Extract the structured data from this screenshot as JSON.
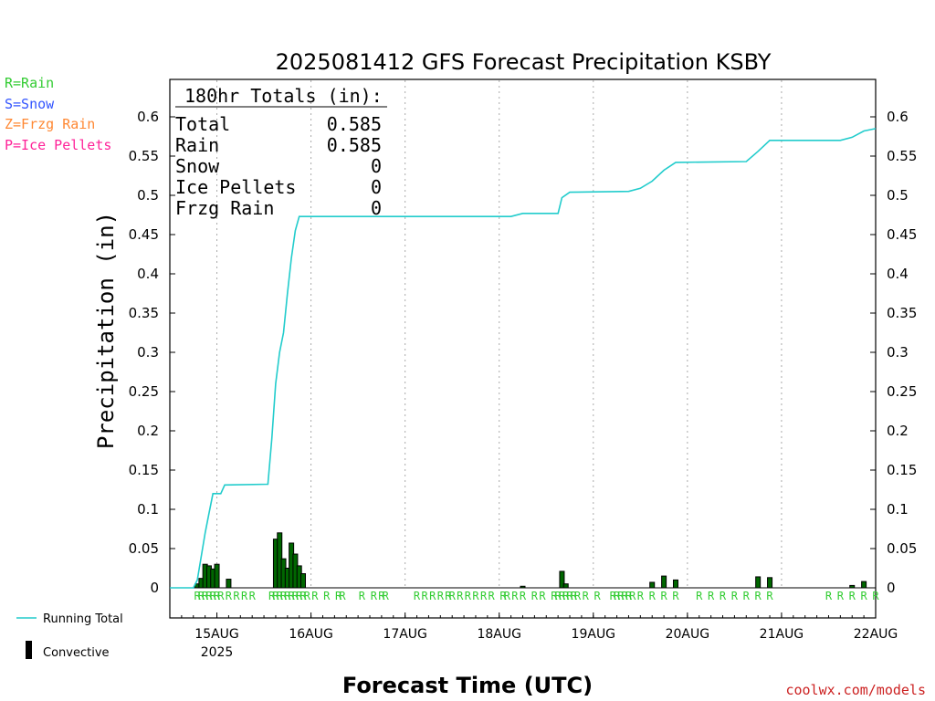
{
  "colors": {
    "rain": "#33cc33",
    "snow": "#3355ff",
    "frzg_rain": "#ff8833",
    "ice_pellets": "#ff2299",
    "running_total": "#22cccc",
    "convective": "#000000",
    "bar_fill": "#006600",
    "watermark": "#cc2222"
  },
  "legend_top": {
    "rain": "R=Rain",
    "snow": "S=Snow",
    "frzg_rain": "Z=Frzg Rain",
    "ice_pellets": "P=Ice Pellets"
  },
  "legend_bottom": {
    "running_total": "Running Total",
    "convective": "Convective"
  },
  "totals_box": {
    "header": "180hr Totals (in):",
    "rows": [
      {
        "label": "Total",
        "value": "0.585"
      },
      {
        "label": "Rain",
        "value": "0.585"
      },
      {
        "label": "Snow",
        "value": "0"
      },
      {
        "label": "Ice Pellets",
        "value": "0"
      },
      {
        "label": "Frzg Rain",
        "value": "0"
      }
    ]
  },
  "watermark": "coolwx.com/models",
  "chart_data": {
    "type": "line",
    "title": "2025081412 GFS Forecast Precipitation KSBY",
    "xlabel": "Forecast Time (UTC)",
    "ylabel": "Precipitation (in)",
    "ylim": [
      0,
      0.6
    ],
    "y_ticks": [
      "0",
      "0.05",
      "0.1",
      "0.15",
      "0.2",
      "0.25",
      "0.3",
      "0.35",
      "0.4",
      "0.45",
      "0.5",
      "0.55",
      "0.6"
    ],
    "x_start": "2025-08-14T12:00Z",
    "x_end": "2025-08-22T00:00Z",
    "x_ticks": [
      {
        "label": "15AUG",
        "sub": "2025",
        "time": "2025-08-15T00:00Z"
      },
      {
        "label": "16AUG",
        "time": "2025-08-16T00:00Z"
      },
      {
        "label": "17AUG",
        "time": "2025-08-17T00:00Z"
      },
      {
        "label": "18AUG",
        "time": "2025-08-18T00:00Z"
      },
      {
        "label": "19AUG",
        "time": "2025-08-19T00:00Z"
      },
      {
        "label": "20AUG",
        "time": "2025-08-20T00:00Z"
      },
      {
        "label": "21AUG",
        "time": "2025-08-21T00:00Z"
      },
      {
        "label": "22AUG",
        "time": "2025-08-22T00:00Z"
      }
    ],
    "grid": "vertical dotted at day boundaries",
    "series": [
      {
        "name": "Running Total",
        "points": [
          [
            "2025-08-14T12:00Z",
            0.0
          ],
          [
            "2025-08-14T18:00Z",
            0.0
          ],
          [
            "2025-08-14T19:00Z",
            0.01
          ],
          [
            "2025-08-14T20:00Z",
            0.04
          ],
          [
            "2025-08-14T21:00Z",
            0.07
          ],
          [
            "2025-08-14T22:00Z",
            0.095
          ],
          [
            "2025-08-14T23:00Z",
            0.12
          ],
          [
            "2025-08-15T01:00Z",
            0.12
          ],
          [
            "2025-08-15T02:00Z",
            0.131
          ],
          [
            "2025-08-15T13:00Z",
            0.132
          ],
          [
            "2025-08-15T14:00Z",
            0.19
          ],
          [
            "2025-08-15T15:00Z",
            0.26
          ],
          [
            "2025-08-15T16:00Z",
            0.3
          ],
          [
            "2025-08-15T17:00Z",
            0.325
          ],
          [
            "2025-08-15T18:00Z",
            0.375
          ],
          [
            "2025-08-15T19:00Z",
            0.42
          ],
          [
            "2025-08-15T20:00Z",
            0.455
          ],
          [
            "2025-08-15T21:00Z",
            0.473
          ],
          [
            "2025-08-18T03:00Z",
            0.473
          ],
          [
            "2025-08-18T06:00Z",
            0.477
          ],
          [
            "2025-08-18T15:00Z",
            0.477
          ],
          [
            "2025-08-18T16:00Z",
            0.497
          ],
          [
            "2025-08-18T18:00Z",
            0.504
          ],
          [
            "2025-08-19T09:00Z",
            0.505
          ],
          [
            "2025-08-19T12:00Z",
            0.509
          ],
          [
            "2025-08-19T15:00Z",
            0.518
          ],
          [
            "2025-08-19T18:00Z",
            0.532
          ],
          [
            "2025-08-19T21:00Z",
            0.542
          ],
          [
            "2025-08-20T15:00Z",
            0.543
          ],
          [
            "2025-08-20T18:00Z",
            0.556
          ],
          [
            "2025-08-20T21:00Z",
            0.57
          ],
          [
            "2025-08-21T15:00Z",
            0.57
          ],
          [
            "2025-08-21T18:00Z",
            0.574
          ],
          [
            "2025-08-21T21:00Z",
            0.582
          ],
          [
            "2025-08-22T00:00Z",
            0.585
          ]
        ]
      },
      {
        "name": "Convective",
        "type": "bar",
        "points": [
          [
            "2025-08-14T19:00Z",
            0.005
          ],
          [
            "2025-08-14T20:00Z",
            0.012
          ],
          [
            "2025-08-14T21:00Z",
            0.03
          ],
          [
            "2025-08-14T22:00Z",
            0.028
          ],
          [
            "2025-08-14T23:00Z",
            0.024
          ],
          [
            "2025-08-15T00:00Z",
            0.03
          ],
          [
            "2025-08-15T03:00Z",
            0.011
          ],
          [
            "2025-08-15T15:00Z",
            0.062
          ],
          [
            "2025-08-15T16:00Z",
            0.07
          ],
          [
            "2025-08-15T17:00Z",
            0.037
          ],
          [
            "2025-08-15T18:00Z",
            0.025
          ],
          [
            "2025-08-15T19:00Z",
            0.057
          ],
          [
            "2025-08-15T20:00Z",
            0.043
          ],
          [
            "2025-08-15T21:00Z",
            0.028
          ],
          [
            "2025-08-15T22:00Z",
            0.018
          ],
          [
            "2025-08-18T06:00Z",
            0.002
          ],
          [
            "2025-08-18T16:00Z",
            0.021
          ],
          [
            "2025-08-18T17:00Z",
            0.005
          ],
          [
            "2025-08-19T15:00Z",
            0.007
          ],
          [
            "2025-08-19T18:00Z",
            0.015
          ],
          [
            "2025-08-19T21:00Z",
            0.01
          ],
          [
            "2025-08-20T18:00Z",
            0.014
          ],
          [
            "2025-08-20T21:00Z",
            0.013
          ],
          [
            "2025-08-21T18:00Z",
            0.003
          ],
          [
            "2025-08-21T21:00Z",
            0.008
          ]
        ]
      }
    ],
    "precip_type_marks": {
      "symbol": "R",
      "times": [
        "2025-08-14T19:00Z",
        "2025-08-14T20:00Z",
        "2025-08-14T21:00Z",
        "2025-08-14T22:00Z",
        "2025-08-14T23:00Z",
        "2025-08-15T00:00Z",
        "2025-08-15T01:00Z",
        "2025-08-15T03:00Z",
        "2025-08-15T05:00Z",
        "2025-08-15T07:00Z",
        "2025-08-15T09:00Z",
        "2025-08-15T14:00Z",
        "2025-08-15T15:00Z",
        "2025-08-15T16:00Z",
        "2025-08-15T17:00Z",
        "2025-08-15T18:00Z",
        "2025-08-15T19:00Z",
        "2025-08-15T20:00Z",
        "2025-08-15T21:00Z",
        "2025-08-15T22:00Z",
        "2025-08-15T23:00Z",
        "2025-08-16T01:00Z",
        "2025-08-16T04:00Z",
        "2025-08-16T07:00Z",
        "2025-08-16T08:00Z",
        "2025-08-16T13:00Z",
        "2025-08-16T16:00Z",
        "2025-08-16T18:00Z",
        "2025-08-16T19:00Z",
        "2025-08-17T03:00Z",
        "2025-08-17T05:00Z",
        "2025-08-17T07:00Z",
        "2025-08-17T09:00Z",
        "2025-08-17T11:00Z",
        "2025-08-17T12:00Z",
        "2025-08-17T14:00Z",
        "2025-08-17T16:00Z",
        "2025-08-17T18:00Z",
        "2025-08-17T20:00Z",
        "2025-08-17T22:00Z",
        "2025-08-18T01:00Z",
        "2025-08-18T02:00Z",
        "2025-08-18T04:00Z",
        "2025-08-18T06:00Z",
        "2025-08-18T09:00Z",
        "2025-08-18T11:00Z",
        "2025-08-18T14:00Z",
        "2025-08-18T15:00Z",
        "2025-08-18T16:00Z",
        "2025-08-18T17:00Z",
        "2025-08-18T18:00Z",
        "2025-08-18T19:00Z",
        "2025-08-18T20:00Z",
        "2025-08-18T22:00Z",
        "2025-08-19T01:00Z",
        "2025-08-19T05:00Z",
        "2025-08-19T06:00Z",
        "2025-08-19T07:00Z",
        "2025-08-19T08:00Z",
        "2025-08-19T09:00Z",
        "2025-08-19T10:00Z",
        "2025-08-19T12:00Z",
        "2025-08-19T15:00Z",
        "2025-08-19T18:00Z",
        "2025-08-19T21:00Z",
        "2025-08-20T03:00Z",
        "2025-08-20T06:00Z",
        "2025-08-20T09:00Z",
        "2025-08-20T12:00Z",
        "2025-08-20T15:00Z",
        "2025-08-20T18:00Z",
        "2025-08-20T21:00Z",
        "2025-08-21T12:00Z",
        "2025-08-21T15:00Z",
        "2025-08-21T18:00Z",
        "2025-08-21T21:00Z",
        "2025-08-22T00:00Z"
      ]
    }
  }
}
